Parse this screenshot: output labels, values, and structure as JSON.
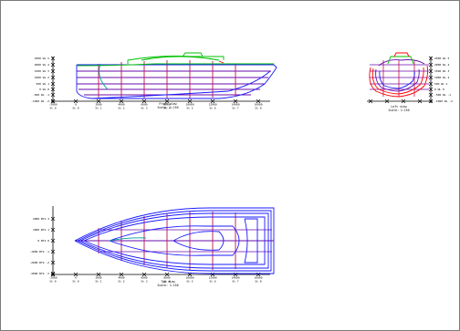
{
  "colors": {
    "hull": "#1a1aff",
    "grid_h": "#6a0dad",
    "grid_v": "#c01050",
    "deck": "#00c000",
    "teal": "#00a0a0",
    "red": "#ff0000",
    "axis": "#000000"
  },
  "views": {
    "front": {
      "caption1": "Front view",
      "caption2": "Scale: 1:150",
      "y_labels": [
        "2500 WL 5",
        "2000 WL 4",
        "1500 WL 3",
        "1000 WL 2",
        "500 WL 1",
        "0 WL 0",
        "-500 WL -1",
        "-1000 WL -2"
      ],
      "x_top": [
        "-2000",
        "0",
        "2000",
        "4000",
        "6000",
        "8000",
        "10000",
        "12000",
        "14000",
        "16000"
      ],
      "x_bot": [
        "St 0",
        "St 0",
        "St 1",
        "St 2",
        "St 3",
        "St 4",
        "St 5",
        "St 6",
        "St 7",
        "St 8"
      ]
    },
    "left": {
      "caption1": "Left view",
      "caption2": "Scale: 1:150",
      "y_labels": [
        "2500 WL 5",
        "2000 WL 4",
        "1500 WL 3",
        "1000 WL 2",
        "500 WL 1",
        "0 WL 0",
        "-500 WL -1",
        "-1000 WL -2"
      ]
    },
    "top": {
      "caption1": "Top view",
      "caption2": "Scale: 1:150",
      "y_labels": [
        "2000 BTk 2",
        "1000 BTk 1",
        "0 BTk 0",
        "-1000 BTk -1",
        "-2000 BTk -2",
        "-3000 BTk -3"
      ],
      "x_top": [
        "-2000",
        "0",
        "2000",
        "4000",
        "6000",
        "8000",
        "10000",
        "12000",
        "14000",
        "16000"
      ],
      "x_bot": [
        "St 0",
        "St 0",
        "St 1",
        "St 2",
        "St 3",
        "St 4",
        "St 5",
        "St 6",
        "St 7",
        "St 8"
      ]
    }
  }
}
